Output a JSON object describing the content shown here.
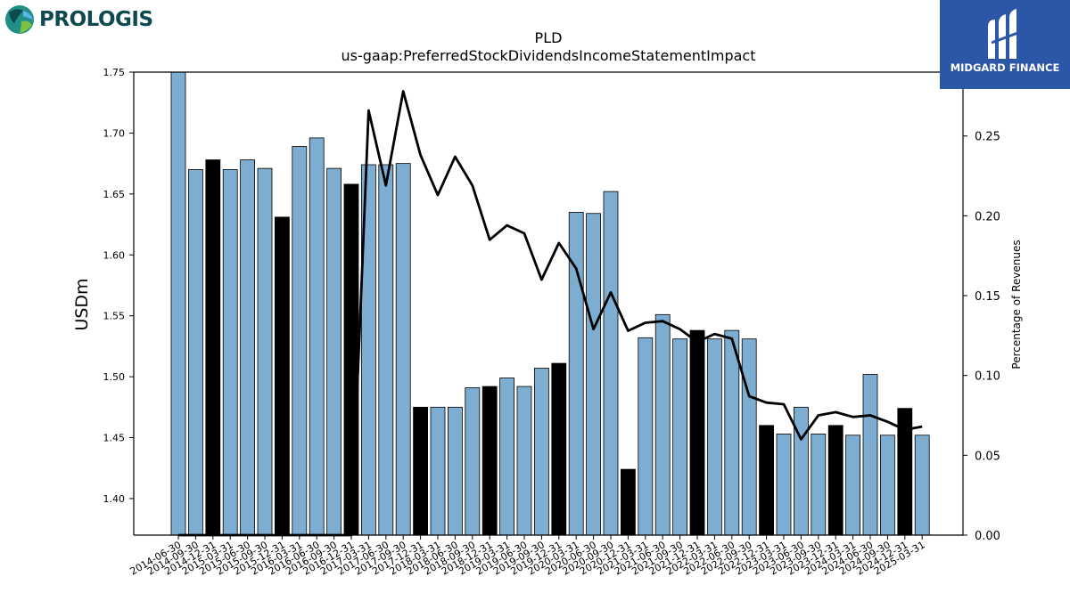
{
  "logos": {
    "left_brand": "PROLOGIS",
    "right_brand": "MIDGARD FINANCE"
  },
  "chart_data": {
    "type": "bar",
    "title": "PLD",
    "subtitle": "us-gaap:PreferredStockDividendsIncomeStatementImpact",
    "ylabel": "USDm",
    "y2label": "Percentage of Revenues",
    "ylim": [
      1.37,
      1.75
    ],
    "y2lim": [
      0.0,
      0.29
    ],
    "yticks": [
      "1.40",
      "1.45",
      "1.50",
      "1.55",
      "1.60",
      "1.65",
      "1.70",
      "1.75"
    ],
    "y2ticks": [
      "0.00",
      "0.05",
      "0.10",
      "0.15",
      "0.20",
      "0.25"
    ],
    "grid": false,
    "colors": {
      "bar": "#7eadd2",
      "bar_q4": "#000000",
      "line": "#000000"
    },
    "categories": [
      "2014-06-30",
      "2014-09-30",
      "2014-12-31",
      "2015-03-31",
      "2015-06-30",
      "2015-09-30",
      "2015-12-31",
      "2016-03-31",
      "2016-06-30",
      "2016-09-30",
      "2016-12-31",
      "2017-03-31",
      "2017-06-30",
      "2017-09-30",
      "2017-12-31",
      "2018-03-31",
      "2018-06-30",
      "2018-09-30",
      "2018-12-31",
      "2019-03-31",
      "2019-06-30",
      "2019-09-30",
      "2019-12-31",
      "2020-03-31",
      "2020-06-30",
      "2020-09-30",
      "2020-12-31",
      "2021-03-31",
      "2021-06-30",
      "2021-09-30",
      "2021-12-31",
      "2022-03-31",
      "2022-06-30",
      "2022-09-30",
      "2022-12-31",
      "2023-03-31",
      "2023-06-30",
      "2023-09-30",
      "2023-12-31",
      "2024-03-31",
      "2024-06-30",
      "2024-09-30",
      "2024-12-31",
      "2025-03-31"
    ],
    "series": [
      {
        "kind": "bar",
        "values": [
          1.75,
          1.67,
          1.678,
          1.67,
          1.678,
          1.671,
          1.631,
          1.689,
          1.696,
          1.671,
          1.658,
          1.674,
          1.674,
          1.675,
          1.475,
          1.475,
          1.475,
          1.491,
          1.492,
          1.499,
          1.492,
          1.507,
          1.511,
          1.635,
          1.634,
          1.652,
          1.424,
          1.532,
          1.551,
          1.531,
          1.538,
          1.531,
          1.538,
          1.531,
          1.46,
          1.453,
          1.475,
          1.453,
          1.46,
          1.452,
          1.502,
          1.452,
          1.474,
          1.452
        ],
        "highlight": [
          false,
          false,
          true,
          false,
          false,
          false,
          true,
          false,
          false,
          false,
          true,
          false,
          false,
          false,
          true,
          false,
          false,
          false,
          true,
          false,
          false,
          false,
          true,
          false,
          false,
          false,
          true,
          false,
          false,
          false,
          true,
          false,
          false,
          false,
          true,
          false,
          false,
          false,
          true,
          false,
          false,
          false,
          true,
          false
        ]
      },
      {
        "kind": "line",
        "axis": "right",
        "values": [
          0,
          0,
          0,
          0,
          0,
          0,
          0,
          0,
          0,
          0,
          0,
          0.266,
          0.219,
          0.278,
          0.238,
          0.213,
          0.237,
          0.219,
          0.185,
          0.194,
          0.189,
          0.16,
          0.183,
          0.167,
          0.129,
          0.152,
          0.128,
          0.133,
          0.134,
          0.129,
          0.121,
          0.126,
          0.123,
          0.087,
          0.083,
          0.082,
          0.06,
          0.075,
          0.077,
          0.074,
          0.075,
          0.071,
          0.066,
          0.068
        ]
      }
    ]
  }
}
